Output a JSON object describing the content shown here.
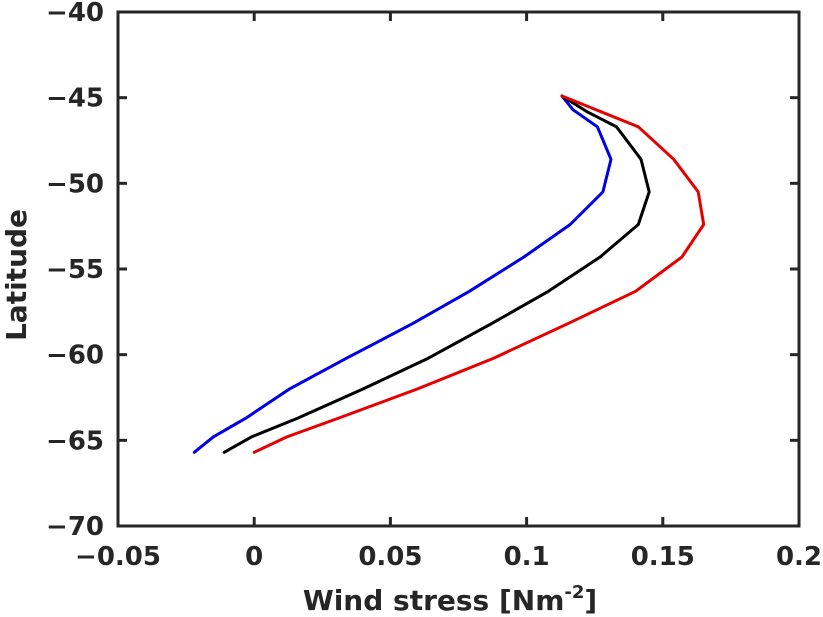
{
  "chart_data": {
    "type": "line",
    "title": "",
    "xlabel": "Wind stress [Nm",
    "xlabel_sup": "-2",
    "xlabel_suffix": "]",
    "ylabel": "Latitude",
    "xlim": [
      -0.05,
      0.2
    ],
    "ylim": [
      -70,
      -40
    ],
    "x_ticks": [
      -0.05,
      0,
      0.05,
      0.1,
      0.15,
      0.2
    ],
    "x_tick_labels": [
      "−0.05",
      "0",
      "0.05",
      "0.1",
      "0.15",
      "0.2"
    ],
    "y_ticks": [
      -70,
      -65,
      -60,
      -55,
      -50,
      -45,
      -40
    ],
    "y_tick_labels": [
      "−70",
      "−65",
      "−60",
      "−55",
      "−50",
      "−45",
      "−40"
    ],
    "grid": false,
    "series": [
      {
        "color": "#0000e6",
        "x": [
          0.113,
          0.117,
          0.126,
          0.131,
          0.128,
          0.116,
          0.099,
          0.079,
          0.058,
          0.034,
          0.013,
          -0.003,
          -0.015,
          -0.022
        ],
        "y": [
          -44.9,
          -45.7,
          -46.7,
          -48.6,
          -50.5,
          -52.4,
          -54.3,
          -56.3,
          -58.2,
          -60.2,
          -62.0,
          -63.7,
          -64.8,
          -65.7
        ]
      },
      {
        "color": "#000000",
        "x": [
          0.113,
          0.122,
          0.133,
          0.142,
          0.145,
          0.141,
          0.127,
          0.108,
          0.087,
          0.064,
          0.04,
          0.016,
          -0.001,
          -0.011
        ],
        "y": [
          -44.9,
          -45.8,
          -46.7,
          -48.6,
          -50.5,
          -52.4,
          -54.3,
          -56.3,
          -58.2,
          -60.2,
          -62.0,
          -63.7,
          -64.8,
          -65.7
        ]
      },
      {
        "color": "#e60000",
        "x": [
          0.113,
          0.127,
          0.141,
          0.154,
          0.163,
          0.165,
          0.157,
          0.14,
          0.115,
          0.088,
          0.06,
          0.031,
          0.012,
          0.0
        ],
        "y": [
          -44.9,
          -45.8,
          -46.7,
          -48.6,
          -50.5,
          -52.4,
          -54.3,
          -56.3,
          -58.2,
          -60.2,
          -62.0,
          -63.7,
          -64.8,
          -65.7
        ]
      }
    ]
  }
}
